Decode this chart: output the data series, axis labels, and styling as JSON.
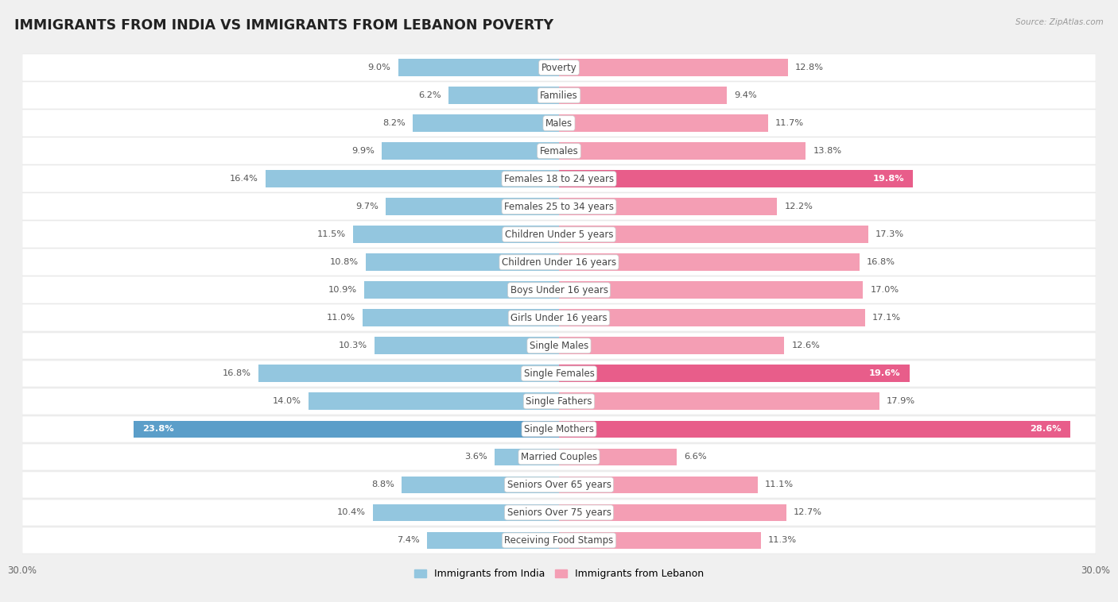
{
  "title": "IMMIGRANTS FROM INDIA VS IMMIGRANTS FROM LEBANON POVERTY",
  "source": "Source: ZipAtlas.com",
  "categories": [
    "Poverty",
    "Families",
    "Males",
    "Females",
    "Females 18 to 24 years",
    "Females 25 to 34 years",
    "Children Under 5 years",
    "Children Under 16 years",
    "Boys Under 16 years",
    "Girls Under 16 years",
    "Single Males",
    "Single Females",
    "Single Fathers",
    "Single Mothers",
    "Married Couples",
    "Seniors Over 65 years",
    "Seniors Over 75 years",
    "Receiving Food Stamps"
  ],
  "india_values": [
    9.0,
    6.2,
    8.2,
    9.9,
    16.4,
    9.7,
    11.5,
    10.8,
    10.9,
    11.0,
    10.3,
    16.8,
    14.0,
    23.8,
    3.6,
    8.8,
    10.4,
    7.4
  ],
  "lebanon_values": [
    12.8,
    9.4,
    11.7,
    13.8,
    19.8,
    12.2,
    17.3,
    16.8,
    17.0,
    17.1,
    12.6,
    19.6,
    17.9,
    28.6,
    6.6,
    11.1,
    12.7,
    11.3
  ],
  "india_color": "#93c6df",
  "lebanon_color": "#f49eb4",
  "india_label_color": "#f49eb4",
  "lebanon_highlight_color": "#e85d8a",
  "india_highlight_color": "#5b9ec9",
  "india_label": "Immigrants from India",
  "lebanon_label": "Immigrants from Lebanon",
  "max_val": 30.0,
  "background_color": "#f0f0f0",
  "row_bg_color": "#ffffff",
  "row_alt_color": "#f7f7f7",
  "bar_height": 0.62,
  "title_fontsize": 12.5,
  "label_fontsize": 8.5,
  "value_fontsize": 8.2,
  "axis_label_fontsize": 8.5,
  "highlight_threshold": 18.5
}
